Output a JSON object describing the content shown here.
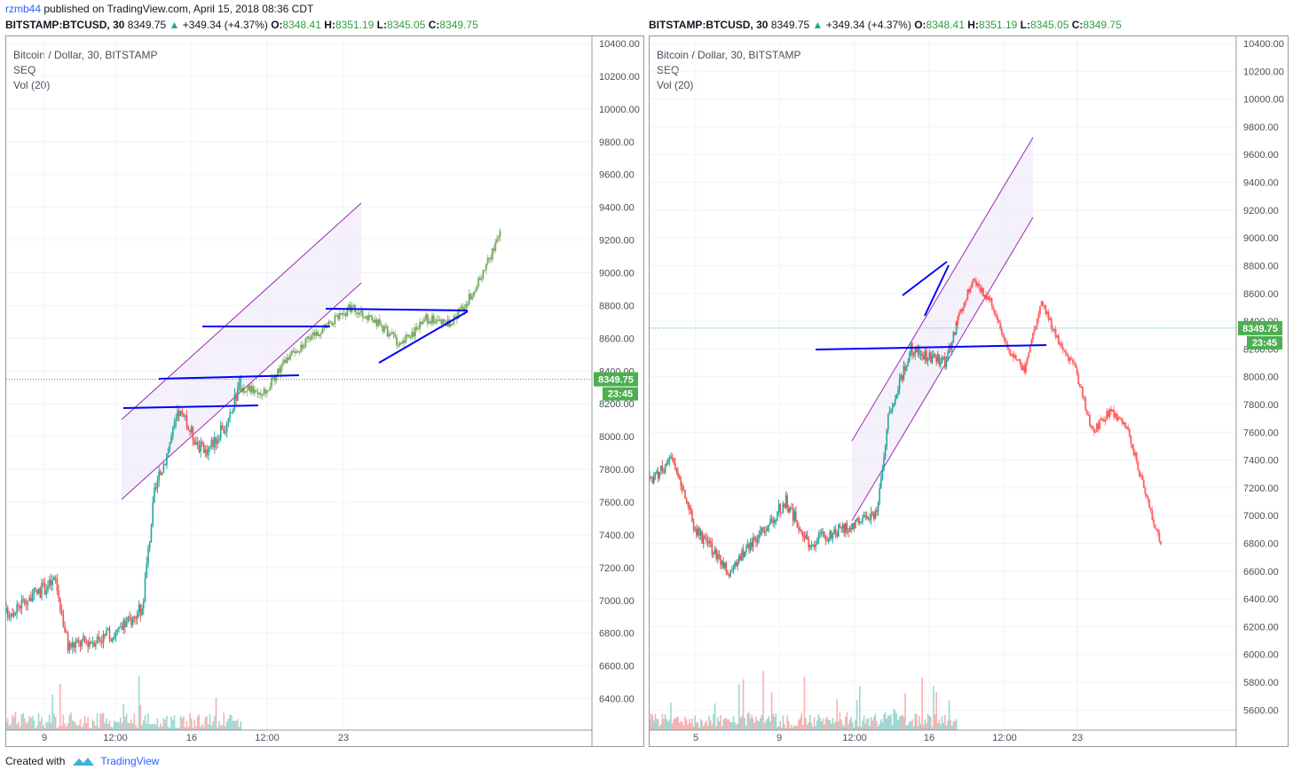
{
  "header": {
    "user": "rzmb44",
    "published": "published on TradingView.com, April 15, 2018 08:36 CDT"
  },
  "tickers": [
    {
      "symbol": "BITSTAMP:BTCUSD, 30",
      "last": "8349.75",
      "change": "+349.34 (+4.37%)",
      "o_label": "O:",
      "o": "8348.41",
      "h_label": "H:",
      "h": "8351.19",
      "l_label": "L:",
      "l": "8345.05",
      "c_label": "C:",
      "c": "8349.75"
    },
    {
      "symbol": "BITSTAMP:BTCUSD, 30",
      "last": "8349.75",
      "change": "+349.34 (+4.37%)",
      "o_label": "O:",
      "o": "8348.41",
      "h_label": "H:",
      "h": "8351.19",
      "l_label": "L:",
      "l": "8345.05",
      "c_label": "C:",
      "c": "8349.75"
    }
  ],
  "panels": [
    {
      "legend": [
        "Bitcoin / Dollar, 30, BITSTAMP",
        "SEQ",
        "Vol (20)"
      ],
      "price_badge": "8349.75",
      "time_badge": "23:45"
    },
    {
      "legend": [
        "Bitcoin / Dollar, 30, BITSTAMP",
        "SEQ",
        "Vol (20)"
      ],
      "price_badge": "8349.75",
      "time_badge": "23:45"
    }
  ],
  "colors": {
    "up": "#26a69a",
    "down": "#ef5350",
    "projection_up": "#4c8b2b",
    "projection_down": "#ff2a2a",
    "trendline": "#0000ff",
    "channel": "#9c27b0",
    "badge": "#4caf50"
  },
  "chart_data": [
    {
      "type": "candlestick",
      "title": "Bitcoin / Dollar, 30, BITSTAMP",
      "ylim": [
        6300,
        10400
      ],
      "y_ticks": [
        "10400.00",
        "10200.00",
        "10000.00",
        "9800.00",
        "9600.00",
        "9400.00",
        "9200.00",
        "9000.00",
        "8800.00",
        "8600.00",
        "8400.00",
        "8200.00",
        "8000.00",
        "7800.00",
        "7600.00",
        "7400.00",
        "7200.00",
        "7000.00",
        "6800.00",
        "6600.00",
        "6400.00"
      ],
      "x_ticks": [
        "9",
        "12:00",
        "16",
        "12:00",
        "23"
      ],
      "last_price": 8349.75,
      "price_path": [
        {
          "t": 0,
          "p": 6920
        },
        {
          "t": 8,
          "p": 7120
        },
        {
          "t": 10,
          "p": 6720
        },
        {
          "t": 18,
          "p": 6800
        },
        {
          "t": 22,
          "p": 6950
        },
        {
          "t": 24,
          "p": 7650
        },
        {
          "t": 28,
          "p": 8150
        },
        {
          "t": 32,
          "p": 7900
        },
        {
          "t": 36,
          "p": 8080
        },
        {
          "t": 38,
          "p": 8360
        }
      ],
      "projection": [
        {
          "t": 38,
          "p": 8300
        },
        {
          "t": 42,
          "p": 8280
        },
        {
          "t": 46,
          "p": 8500
        },
        {
          "t": 52,
          "p": 8680
        },
        {
          "t": 56,
          "p": 8790
        },
        {
          "t": 60,
          "p": 8700
        },
        {
          "t": 64,
          "p": 8560
        },
        {
          "t": 68,
          "p": 8720
        },
        {
          "t": 72,
          "p": 8680
        },
        {
          "t": 76,
          "p": 8900
        },
        {
          "t": 80,
          "p": 9230
        }
      ]
    },
    {
      "type": "candlestick",
      "title": "Bitcoin / Dollar, 30, BITSTAMP",
      "ylim": [
        5500,
        10400
      ],
      "y_ticks": [
        "10400.00",
        "10200.00",
        "10000.00",
        "9800.00",
        "9600.00",
        "9400.00",
        "9200.00",
        "9000.00",
        "8800.00",
        "8600.00",
        "8400.00",
        "8200.00",
        "8000.00",
        "7800.00",
        "7600.00",
        "7400.00",
        "7200.00",
        "7000.00",
        "6800.00",
        "6600.00",
        "6400.00",
        "6200.00",
        "6000.00",
        "5800.00",
        "5600.00"
      ],
      "x_ticks": [
        "5",
        "9",
        "12:00",
        "16",
        "12:00",
        "23"
      ],
      "last_price": 8349.75,
      "price_path": [
        {
          "t": 0,
          "p": 7250
        },
        {
          "t": 4,
          "p": 7400
        },
        {
          "t": 8,
          "p": 6900
        },
        {
          "t": 14,
          "p": 6600
        },
        {
          "t": 20,
          "p": 6900
        },
        {
          "t": 24,
          "p": 7100
        },
        {
          "t": 28,
          "p": 6800
        },
        {
          "t": 34,
          "p": 6900
        },
        {
          "t": 40,
          "p": 7000
        },
        {
          "t": 42,
          "p": 7700
        },
        {
          "t": 46,
          "p": 8200
        },
        {
          "t": 52,
          "p": 8100
        },
        {
          "t": 54,
          "p": 8350
        }
      ],
      "projection": [
        {
          "t": 54,
          "p": 8400
        },
        {
          "t": 57,
          "p": 8700
        },
        {
          "t": 60,
          "p": 8550
        },
        {
          "t": 63,
          "p": 8200
        },
        {
          "t": 66,
          "p": 8050
        },
        {
          "t": 69,
          "p": 8550
        },
        {
          "t": 72,
          "p": 8250
        },
        {
          "t": 75,
          "p": 8050
        },
        {
          "t": 78,
          "p": 7600
        },
        {
          "t": 81,
          "p": 7750
        },
        {
          "t": 84,
          "p": 7650
        },
        {
          "t": 87,
          "p": 7200
        },
        {
          "t": 90,
          "p": 6800
        }
      ]
    }
  ]
}
